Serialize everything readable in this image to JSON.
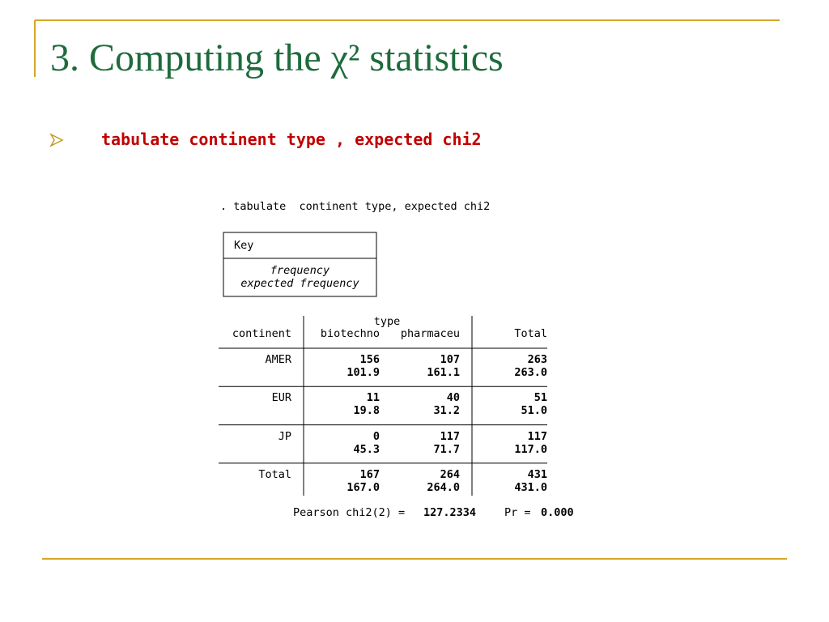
{
  "title": "3. Computing the χ² statistics",
  "bullet": "tabulate continent type , expected chi2",
  "command": ". tabulate  continent type, expected chi2",
  "key": {
    "title": "Key",
    "lines": [
      "frequency",
      "expected frequency"
    ]
  },
  "table": {
    "group_header": "type",
    "columns": [
      "continent",
      "biotechno",
      "pharmaceu",
      "Total"
    ],
    "rows": [
      {
        "label": "AMER",
        "frequency": [
          "156",
          "107",
          "263"
        ],
        "expected": [
          "101.9",
          "161.1",
          "263.0"
        ]
      },
      {
        "label": "EUR",
        "frequency": [
          "11",
          "40",
          "51"
        ],
        "expected": [
          "19.8",
          "31.2",
          "51.0"
        ]
      },
      {
        "label": "JP",
        "frequency": [
          "0",
          "117",
          "117"
        ],
        "expected": [
          "45.3",
          "71.7",
          "117.0"
        ]
      },
      {
        "label": "Total",
        "frequency": [
          "167",
          "264",
          "431"
        ],
        "expected": [
          "167.0",
          "264.0",
          "431.0"
        ]
      }
    ]
  },
  "footer": {
    "chi2_label": "Pearson chi2(2) =",
    "chi2": "127.2334",
    "pr_label": "Pr =",
    "pr": "0.000"
  }
}
